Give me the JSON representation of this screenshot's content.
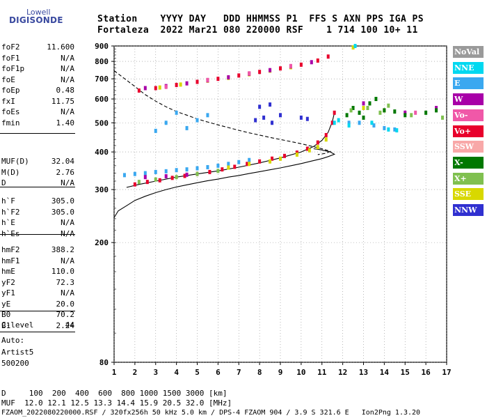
{
  "logo": {
    "top": "Lowell",
    "main": "DIGISONDE"
  },
  "header": {
    "line1": "Station    YYYY DAY   DDD HHMMSS P1  FFS S AXN PPS IGA PS",
    "line2": "Fortaleza  2022 Mar21 080 220000 RSF    1 714 100 10+ 11"
  },
  "params_group1": [
    {
      "k": "foF2",
      "v": "11.600"
    },
    {
      "k": "foF1",
      "v": "N/A"
    },
    {
      "k": "foF1p",
      "v": "N/A"
    },
    {
      "k": "foE",
      "v": "N/A"
    },
    {
      "k": "foEp",
      "v": "0.48"
    },
    {
      "k": "fxI",
      "v": "11.75"
    },
    {
      "k": "foEs",
      "v": "N/A"
    },
    {
      "k": "fmin",
      "v": "1.40"
    }
  ],
  "params_group2": [
    {
      "k": "MUF(D)",
      "v": "32.04"
    },
    {
      "k": "M(D)",
      "v": "2.76"
    },
    {
      "k": "D",
      "v": "N/A"
    }
  ],
  "params_group3": [
    {
      "k": "h`F",
      "v": "305.0"
    },
    {
      "k": "h`F2",
      "v": "305.0"
    },
    {
      "k": "h`E",
      "v": "N/A"
    },
    {
      "k": "h`Es",
      "v": "N/A"
    }
  ],
  "params_group4": [
    {
      "k": "hmF2",
      "v": "388.2"
    },
    {
      "k": "hmF1",
      "v": "N/A"
    },
    {
      "k": "hmE",
      "v": "110.0"
    },
    {
      "k": "yF2",
      "v": "72.3"
    },
    {
      "k": "yF1",
      "v": "N/A"
    },
    {
      "k": "yE",
      "v": "20.0"
    },
    {
      "k": "B0",
      "v": "70.2"
    },
    {
      "k": "B1",
      "v": "2.24"
    }
  ],
  "params_group5": [
    {
      "k": "C-level",
      "v": "44"
    }
  ],
  "autoscaling": {
    "l1": "Auto:",
    "l2": "Artist5",
    "l3": "500200"
  },
  "footer": {
    "d_line": "D     100  200  400  600  800 1000 1500 3000 [km]",
    "muf_line": "MUF  12.0 12.1 12.5 13.3 14.4 15.9 20.5 32.0 [MHz]",
    "file_line": "FZAOM_2022080220000.RSF / 320fx256h 50 kHz 5.0 km / DPS-4 FZAOM 904 / 3.9 S 321.6 E   Ion2Png 1.3.20"
  },
  "legend": [
    {
      "label": "NoVal",
      "color": "#9a9a9a"
    },
    {
      "label": "NNE",
      "color": "#00d8f0"
    },
    {
      "label": "E",
      "color": "#3aa8f0"
    },
    {
      "label": "W",
      "color": "#a800a8"
    },
    {
      "label": "Vo-",
      "color": "#f058a8"
    },
    {
      "label": "Vo+",
      "color": "#e8002c"
    },
    {
      "label": "SSW",
      "color": "#f8a8a8"
    },
    {
      "label": "X-",
      "color": "#007800"
    },
    {
      "label": "X+",
      "color": "#80c050"
    },
    {
      "label": "SSE",
      "color": "#d8d800"
    },
    {
      "label": "NNW",
      "color": "#3030d0"
    }
  ],
  "chart_data": {
    "type": "scatter",
    "xlim": [
      1,
      17
    ],
    "ylim": [
      80,
      900
    ],
    "x_ticks": [
      "1",
      "2",
      "3",
      "4",
      "5",
      "6",
      "7",
      "8",
      "9",
      "10",
      "11",
      "12",
      "13",
      "14",
      "15",
      "16",
      "17"
    ],
    "y_ticks": [
      "80",
      "200",
      "300",
      "400",
      "500",
      "600",
      "700",
      "800",
      "900"
    ],
    "y_scale": "log",
    "grid": true,
    "series": [
      {
        "name": "Vo+",
        "color": "#e8002c",
        "points": [
          [
            2.0,
            312
          ],
          [
            2.6,
            318
          ],
          [
            3.2,
            322
          ],
          [
            3.8,
            328
          ],
          [
            4.4,
            333
          ],
          [
            5.0,
            338
          ],
          [
            5.6,
            343
          ],
          [
            6.2,
            350
          ],
          [
            6.8,
            357
          ],
          [
            7.4,
            365
          ],
          [
            8.0,
            372
          ],
          [
            8.6,
            380
          ],
          [
            9.2,
            388
          ],
          [
            9.8,
            398
          ],
          [
            10.3,
            410
          ],
          [
            10.8,
            430
          ],
          [
            11.2,
            455
          ],
          [
            11.5,
            500
          ],
          [
            11.6,
            540
          ],
          [
            2.2,
            640
          ],
          [
            3.0,
            652
          ],
          [
            4.0,
            668
          ],
          [
            5.0,
            684
          ],
          [
            6.0,
            700
          ],
          [
            7.0,
            718
          ],
          [
            8.0,
            738
          ],
          [
            9.0,
            758
          ],
          [
            10.0,
            780
          ],
          [
            10.8,
            805
          ],
          [
            11.3,
            830
          ]
        ]
      },
      {
        "name": "E",
        "color": "#3aa8f0",
        "points": [
          [
            1.5,
            335
          ],
          [
            2.0,
            338
          ],
          [
            2.5,
            340
          ],
          [
            3.0,
            343
          ],
          [
            3.5,
            345
          ],
          [
            4.0,
            348
          ],
          [
            4.5,
            350
          ],
          [
            5.0,
            353
          ],
          [
            5.5,
            356
          ],
          [
            6.0,
            360
          ],
          [
            6.5,
            365
          ],
          [
            7.0,
            370
          ],
          [
            7.5,
            376
          ],
          [
            3.0,
            470
          ],
          [
            3.5,
            500
          ],
          [
            4.0,
            540
          ],
          [
            4.5,
            480
          ],
          [
            5.0,
            510
          ],
          [
            5.5,
            530
          ],
          [
            12.3,
            500
          ],
          [
            12.8,
            500
          ],
          [
            13.5,
            490
          ],
          [
            14.0,
            480
          ],
          [
            14.5,
            475
          ]
        ]
      },
      {
        "name": "SSE",
        "color": "#d8d800",
        "points": [
          [
            6.5,
            355
          ],
          [
            7.5,
            365
          ],
          [
            8.5,
            372
          ],
          [
            9.0,
            380
          ],
          [
            9.8,
            392
          ],
          [
            10.4,
            405
          ],
          [
            10.8,
            415
          ],
          [
            11.2,
            440
          ],
          [
            3.2,
            655
          ],
          [
            4.2,
            670
          ],
          [
            5.5,
            690
          ],
          [
            6.5,
            705
          ],
          [
            7.5,
            725
          ],
          [
            8.5,
            745
          ],
          [
            9.5,
            765
          ],
          [
            12.5,
            890
          ],
          [
            13.0,
            560
          ],
          [
            14.0,
            550
          ]
        ]
      },
      {
        "name": "W",
        "color": "#a800a8",
        "points": [
          [
            2.5,
            330
          ],
          [
            3.5,
            332
          ],
          [
            4.5,
            336
          ],
          [
            2.5,
            652
          ],
          [
            3.5,
            662
          ],
          [
            4.5,
            676
          ],
          [
            5.5,
            692
          ],
          [
            6.5,
            708
          ],
          [
            7.5,
            728
          ],
          [
            8.5,
            748
          ],
          [
            9.5,
            770
          ],
          [
            10.5,
            795
          ],
          [
            13.0,
            580
          ],
          [
            15.0,
            540
          ],
          [
            16.5,
            560
          ]
        ]
      },
      {
        "name": "X-",
        "color": "#007800",
        "points": [
          [
            12.2,
            530
          ],
          [
            12.5,
            560
          ],
          [
            12.8,
            540
          ],
          [
            13.0,
            520
          ],
          [
            13.3,
            580
          ],
          [
            13.6,
            600
          ],
          [
            14.0,
            550
          ],
          [
            14.5,
            545
          ],
          [
            15.0,
            530
          ],
          [
            16.0,
            540
          ],
          [
            16.5,
            550
          ]
        ]
      },
      {
        "name": "X+",
        "color": "#80c050",
        "points": [
          [
            2.2,
            318
          ],
          [
            3.0,
            324
          ],
          [
            4.0,
            330
          ],
          [
            5.0,
            338
          ],
          [
            6.0,
            346
          ],
          [
            12.4,
            550
          ],
          [
            13.2,
            560
          ],
          [
            13.8,
            540
          ],
          [
            14.2,
            570
          ],
          [
            15.3,
            530
          ],
          [
            16.8,
            520
          ]
        ]
      },
      {
        "name": "NNW",
        "color": "#3030d0",
        "points": [
          [
            7.8,
            510
          ],
          [
            8.2,
            520
          ],
          [
            8.6,
            500
          ],
          [
            9.0,
            530
          ],
          [
            10.0,
            520
          ],
          [
            10.3,
            515
          ],
          [
            8.0,
            565
          ],
          [
            8.5,
            575
          ]
        ]
      },
      {
        "name": "NNE",
        "color": "#00d8f0",
        "points": [
          [
            11.6,
            500
          ],
          [
            11.8,
            510
          ],
          [
            12.3,
            490
          ],
          [
            12.6,
            900
          ],
          [
            13.4,
            500
          ],
          [
            14.2,
            475
          ],
          [
            14.6,
            472
          ]
        ]
      },
      {
        "name": "Vo-",
        "color": "#f058a8",
        "points": [
          [
            3.5,
            658
          ],
          [
            5.5,
            694
          ],
          [
            7.5,
            730
          ],
          [
            9.5,
            772
          ],
          [
            15.5,
            540
          ]
        ]
      }
    ],
    "lines": [
      {
        "style": "solid",
        "points": [
          [
            1.0,
            242
          ],
          [
            1.2,
            255
          ],
          [
            1.6,
            265
          ],
          [
            2.0,
            276
          ],
          [
            2.5,
            285
          ],
          [
            3.0,
            293
          ],
          [
            3.5,
            300
          ],
          [
            4.0,
            306
          ],
          [
            4.5,
            311
          ],
          [
            5.0,
            316
          ],
          [
            5.5,
            321
          ],
          [
            6.0,
            325
          ],
          [
            6.5,
            330
          ],
          [
            7.0,
            334
          ],
          [
            7.5,
            339
          ],
          [
            8.0,
            344
          ],
          [
            8.5,
            349
          ],
          [
            9.0,
            354
          ],
          [
            9.5,
            360
          ],
          [
            10.0,
            366
          ],
          [
            10.5,
            373
          ],
          [
            11.0,
            380
          ],
          [
            11.3,
            386
          ],
          [
            11.6,
            393
          ],
          [
            11.4,
            400
          ],
          [
            11.0,
            406
          ],
          [
            10.6,
            410
          ]
        ]
      },
      {
        "style": "solid",
        "points": [
          [
            1.6,
            305
          ],
          [
            2.2,
            312
          ],
          [
            3.0,
            320
          ],
          [
            4.0,
            330
          ],
          [
            5.0,
            338
          ],
          [
            6.0,
            346
          ],
          [
            7.0,
            356
          ],
          [
            8.0,
            368
          ],
          [
            9.0,
            382
          ],
          [
            10.0,
            400
          ],
          [
            10.6,
            417
          ],
          [
            11.0,
            437
          ],
          [
            11.3,
            465
          ],
          [
            11.5,
            505
          ],
          [
            11.6,
            540
          ]
        ]
      },
      {
        "style": "dashed",
        "points": [
          [
            1.0,
            745
          ],
          [
            1.4,
            710
          ],
          [
            2.0,
            660
          ],
          [
            2.5,
            620
          ],
          [
            3.0,
            590
          ],
          [
            3.5,
            565
          ],
          [
            4.0,
            545
          ],
          [
            4.5,
            530
          ],
          [
            5.0,
            515
          ],
          [
            5.5,
            503
          ],
          [
            6.0,
            492
          ],
          [
            6.5,
            482
          ],
          [
            7.0,
            472
          ],
          [
            7.5,
            463
          ],
          [
            8.0,
            455
          ],
          [
            8.5,
            447
          ],
          [
            9.0,
            440
          ],
          [
            9.5,
            433
          ],
          [
            10.0,
            426
          ],
          [
            10.5,
            418
          ],
          [
            11.0,
            410
          ],
          [
            11.4,
            402
          ],
          [
            11.2,
            396
          ],
          [
            10.8,
            392
          ]
        ]
      }
    ]
  }
}
